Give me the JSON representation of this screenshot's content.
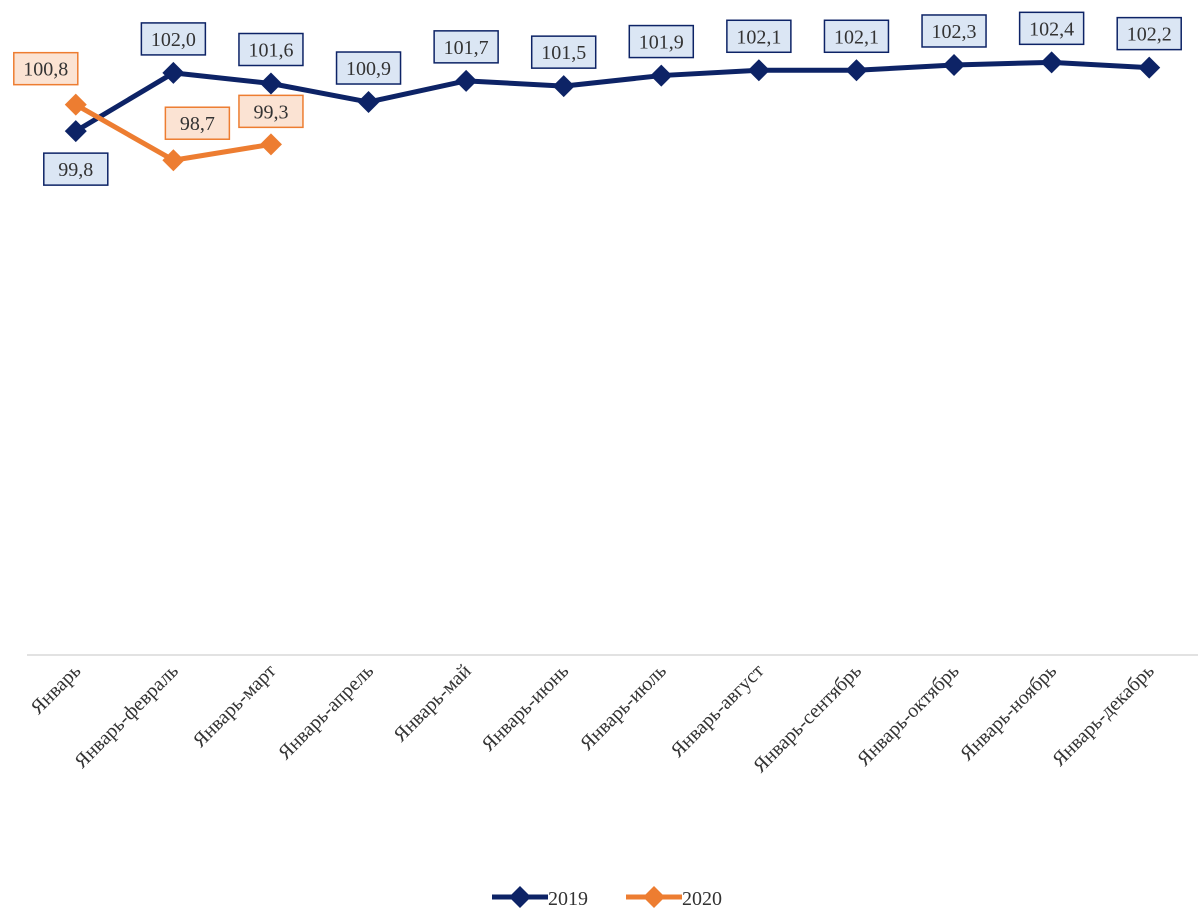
{
  "chart_data": {
    "type": "line",
    "categories": [
      "Январь",
      "Январь-февраль",
      "Январь-март",
      "Январь-апрель",
      "Январь-май",
      "Январь-июнь",
      "Январь-июль",
      "Январь-август",
      "Январь-сентябрь",
      "Январь-октябрь",
      "Январь-ноябрь",
      "Январь-декабрь"
    ],
    "series": [
      {
        "name": "2019",
        "color": "#0d2366",
        "values": [
          99.8,
          102.0,
          101.6,
          100.9,
          101.7,
          101.5,
          101.9,
          102.1,
          102.1,
          102.3,
          102.4,
          102.2
        ],
        "value_labels": [
          "99,8",
          "102,0",
          "101,6",
          "100,9",
          "101,7",
          "101,5",
          "101,9",
          "102,1",
          "102,1",
          "102,3",
          "102,4",
          "102,2"
        ]
      },
      {
        "name": "2020",
        "color": "#ed7d31",
        "values": [
          100.8,
          98.7,
          99.3,
          null,
          null,
          null,
          null,
          null,
          null,
          null,
          null,
          null
        ],
        "value_labels": [
          "100,8",
          "98,7",
          "99,3",
          null,
          null,
          null,
          null,
          null,
          null,
          null,
          null,
          null
        ]
      }
    ],
    "ylim": [
      80,
      104
    ],
    "legend": "bottom"
  }
}
